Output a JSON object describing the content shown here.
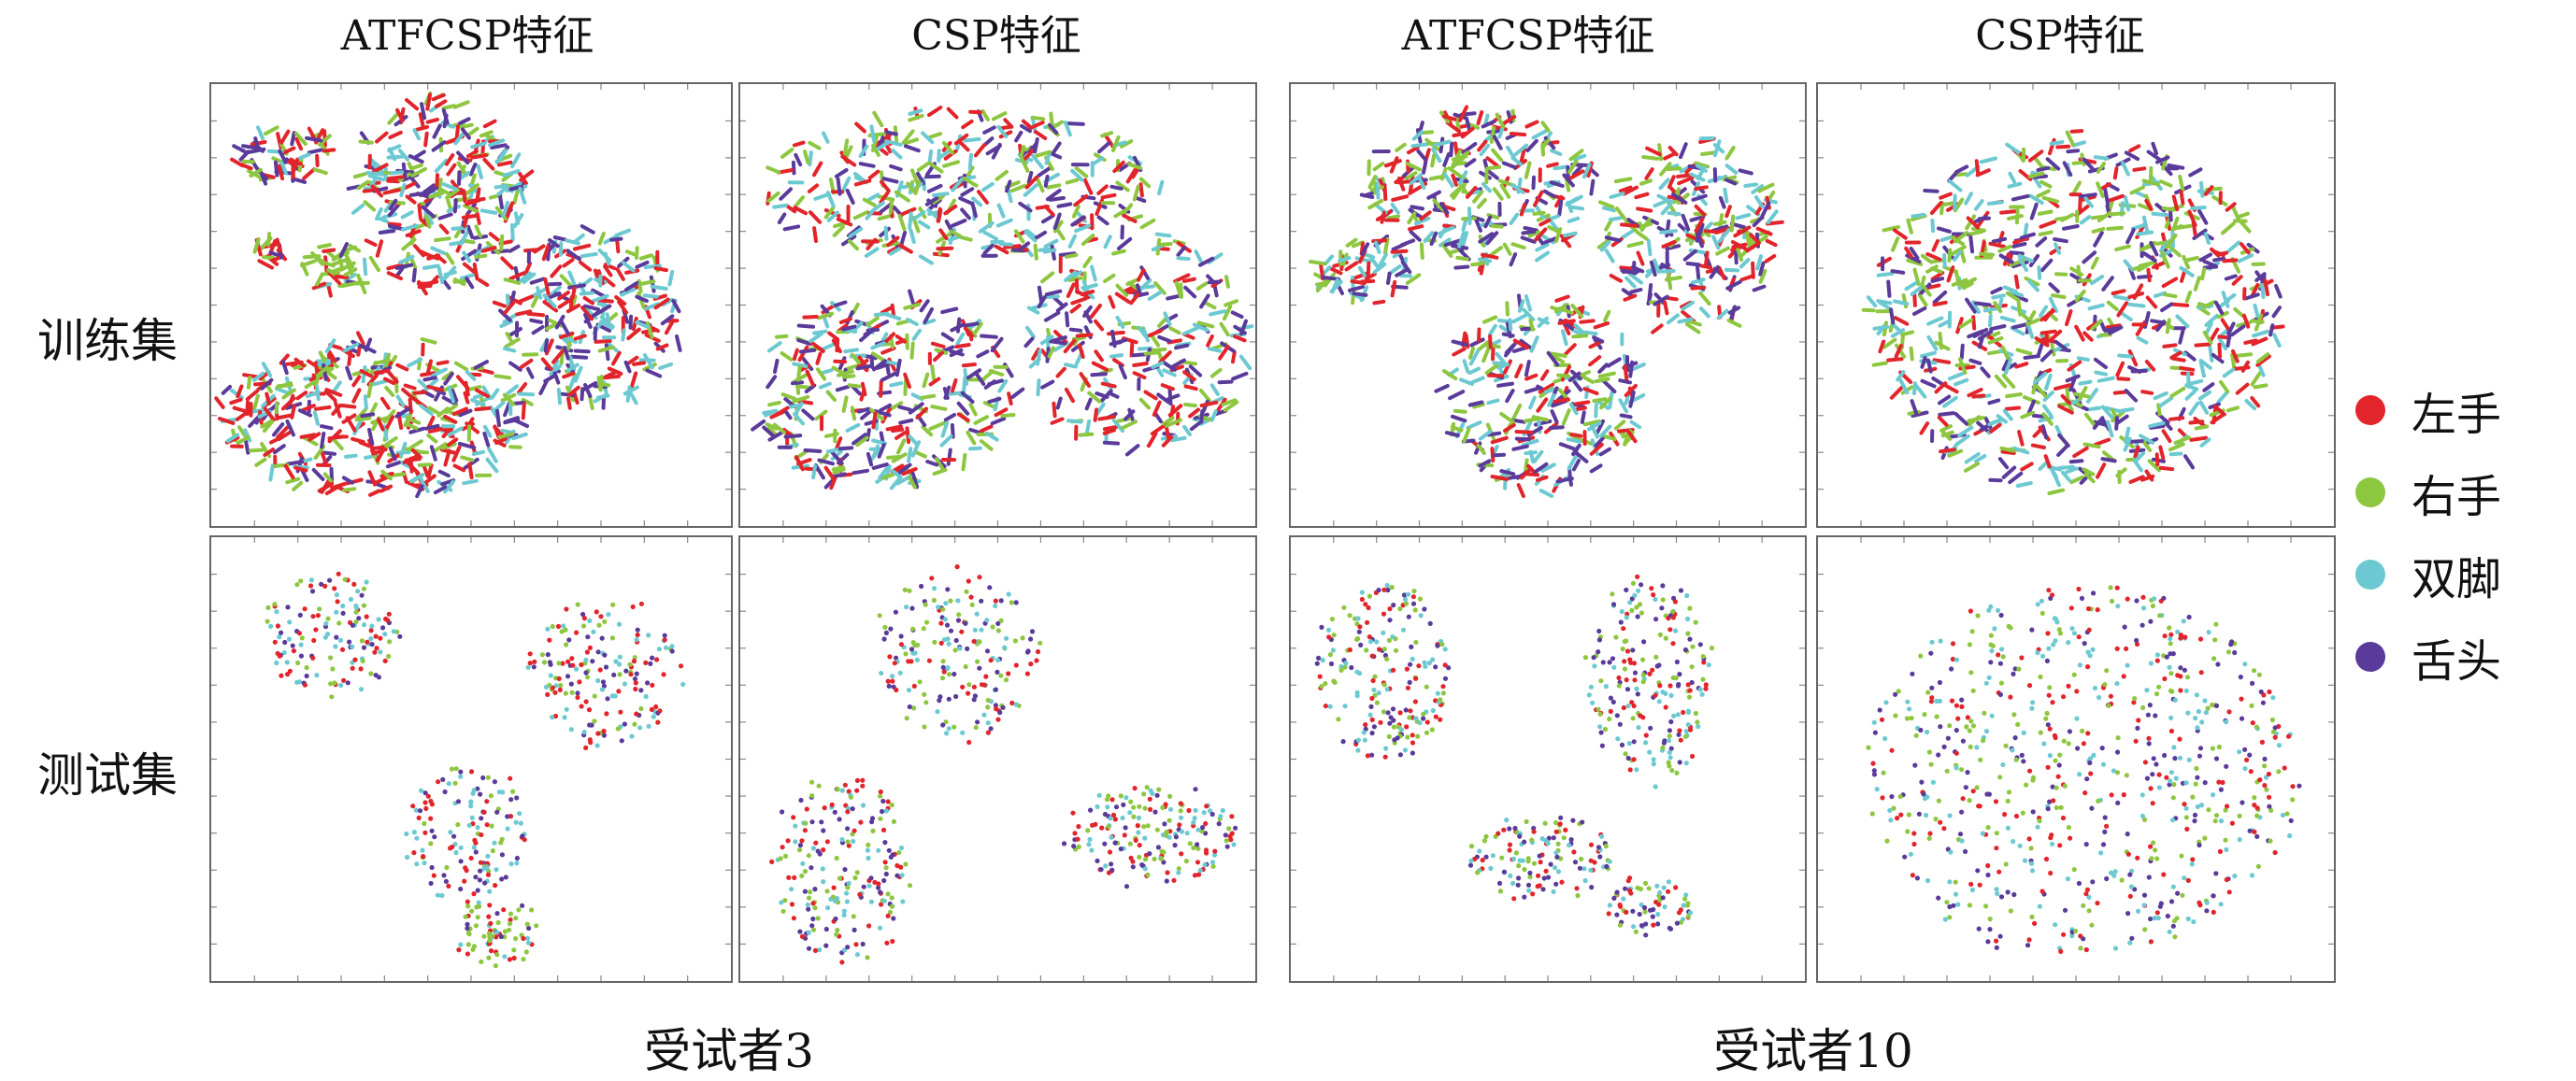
{
  "columns": [
    "ATFCSP特征",
    "CSP特征",
    "ATFCSP特征",
    "CSP特征"
  ],
  "rows": [
    "训练集",
    "测试集"
  ],
  "subjects": [
    "受试者3",
    "受试者10"
  ],
  "legend": [
    {
      "label": "左手",
      "color": "#e2242b"
    },
    {
      "label": "右手",
      "color": "#8dc63f"
    },
    {
      "label": "双脚",
      "color": "#6cc9d1"
    },
    {
      "label": "舌头",
      "color": "#5a3a9a"
    }
  ],
  "chart_data": {
    "type": "scatter",
    "series": [
      {
        "name": "左手",
        "color": "#e2242b"
      },
      {
        "name": "右手",
        "color": "#8dc63f"
      },
      {
        "name": "双脚",
        "color": "#6cc9d1"
      },
      {
        "name": "舌头",
        "color": "#5a3a9a"
      }
    ],
    "xlim": [
      0,
      100
    ],
    "ylim": [
      0,
      100
    ],
    "panels": [
      {
        "subject": "受试者3",
        "row": "训练集",
        "feature": "ATFCSP特征",
        "marker": "dash",
        "clusters": [
          {
            "cx": 14,
            "cy": 84,
            "rx": 9,
            "ry": 7,
            "n": 55,
            "mix": [
              0.45,
              0.25,
              0.1,
              0.2
            ]
          },
          {
            "cx": 44,
            "cy": 75,
            "rx": 17,
            "ry": 22,
            "n": 260,
            "mix": [
              0.3,
              0.25,
              0.25,
              0.2
            ]
          },
          {
            "cx": 24,
            "cy": 58,
            "rx": 7,
            "ry": 5,
            "n": 40,
            "mix": [
              0.2,
              0.6,
              0.1,
              0.1
            ]
          },
          {
            "cx": 12,
            "cy": 62,
            "rx": 3,
            "ry": 3,
            "n": 14,
            "mix": [
              0.5,
              0.2,
              0.1,
              0.2
            ]
          },
          {
            "cx": 73,
            "cy": 47,
            "rx": 17,
            "ry": 20,
            "n": 230,
            "mix": [
              0.3,
              0.15,
              0.3,
              0.25
            ]
          },
          {
            "cx": 32,
            "cy": 25,
            "rx": 30,
            "ry": 18,
            "n": 380,
            "mix": [
              0.38,
              0.22,
              0.22,
              0.18
            ]
          }
        ]
      },
      {
        "subject": "受试者3",
        "row": "训练集",
        "feature": "CSP特征",
        "marker": "dash",
        "clusters": [
          {
            "cx": 43,
            "cy": 77,
            "rx": 38,
            "ry": 17,
            "n": 330,
            "mix": [
              0.25,
              0.25,
              0.25,
              0.25
            ]
          },
          {
            "cx": 77,
            "cy": 42,
            "rx": 21,
            "ry": 26,
            "n": 260,
            "mix": [
              0.25,
              0.25,
              0.25,
              0.25
            ]
          },
          {
            "cx": 28,
            "cy": 30,
            "rx": 25,
            "ry": 22,
            "n": 310,
            "mix": [
              0.25,
              0.25,
              0.25,
              0.25
            ]
          }
        ]
      },
      {
        "subject": "受试者10",
        "row": "训练集",
        "feature": "ATFCSP特征",
        "marker": "dash",
        "clusters": [
          {
            "cx": 37,
            "cy": 76,
            "rx": 22,
            "ry": 18,
            "n": 260,
            "mix": [
              0.25,
              0.25,
              0.25,
              0.25
            ]
          },
          {
            "cx": 14,
            "cy": 58,
            "rx": 10,
            "ry": 7,
            "n": 60,
            "mix": [
              0.25,
              0.25,
              0.25,
              0.25
            ]
          },
          {
            "cx": 78,
            "cy": 66,
            "rx": 17,
            "ry": 22,
            "n": 230,
            "mix": [
              0.25,
              0.25,
              0.25,
              0.25
            ]
          },
          {
            "cx": 49,
            "cy": 30,
            "rx": 19,
            "ry": 22,
            "n": 250,
            "mix": [
              0.25,
              0.25,
              0.25,
              0.25
            ]
          }
        ]
      },
      {
        "subject": "受试者10",
        "row": "训练集",
        "feature": "CSP特征",
        "marker": "dash",
        "clusters": [
          {
            "cx": 50,
            "cy": 48,
            "rx": 40,
            "ry": 40,
            "n": 760,
            "mix": [
              0.25,
              0.25,
              0.25,
              0.25
            ]
          }
        ]
      },
      {
        "subject": "受试者3",
        "row": "测试集",
        "feature": "ATFCSP特征",
        "marker": "dot",
        "clusters": [
          {
            "cx": 23,
            "cy": 78,
            "rx": 13,
            "ry": 14,
            "n": 140,
            "mix": [
              0.3,
              0.2,
              0.25,
              0.25
            ]
          },
          {
            "cx": 76,
            "cy": 70,
            "rx": 15,
            "ry": 17,
            "n": 170,
            "mix": [
              0.3,
              0.2,
              0.25,
              0.25
            ]
          },
          {
            "cx": 49,
            "cy": 33,
            "rx": 12,
            "ry": 15,
            "n": 140,
            "mix": [
              0.25,
              0.15,
              0.3,
              0.3
            ]
          },
          {
            "cx": 55,
            "cy": 11,
            "rx": 8,
            "ry": 7,
            "n": 75,
            "mix": [
              0.25,
              0.6,
              0.1,
              0.05
            ]
          }
        ]
      },
      {
        "subject": "受试者3",
        "row": "测试集",
        "feature": "CSP特征",
        "marker": "dot",
        "clusters": [
          {
            "cx": 42,
            "cy": 73,
            "rx": 16,
            "ry": 19,
            "n": 190,
            "mix": [
              0.25,
              0.25,
              0.25,
              0.25
            ]
          },
          {
            "cx": 20,
            "cy": 25,
            "rx": 13,
            "ry": 22,
            "n": 200,
            "mix": [
              0.25,
              0.25,
              0.25,
              0.25
            ]
          },
          {
            "cx": 80,
            "cy": 33,
            "rx": 17,
            "ry": 11,
            "n": 180,
            "mix": [
              0.25,
              0.25,
              0.25,
              0.25
            ]
          }
        ]
      },
      {
        "subject": "受试者10",
        "row": "测试集",
        "feature": "ATFCSP特征",
        "marker": "dot",
        "clusters": [
          {
            "cx": 18,
            "cy": 70,
            "rx": 13,
            "ry": 20,
            "n": 200,
            "mix": [
              0.25,
              0.25,
              0.25,
              0.25
            ]
          },
          {
            "cx": 70,
            "cy": 68,
            "rx": 12,
            "ry": 24,
            "n": 210,
            "mix": [
              0.25,
              0.25,
              0.25,
              0.25
            ]
          },
          {
            "cx": 49,
            "cy": 28,
            "rx": 14,
            "ry": 9,
            "n": 130,
            "mix": [
              0.25,
              0.25,
              0.25,
              0.25
            ]
          },
          {
            "cx": 70,
            "cy": 17,
            "rx": 9,
            "ry": 6,
            "n": 70,
            "mix": [
              0.25,
              0.25,
              0.25,
              0.25
            ]
          }
        ]
      },
      {
        "subject": "受试者10",
        "row": "测试集",
        "feature": "CSP特征",
        "marker": "dot",
        "clusters": [
          {
            "cx": 51,
            "cy": 47,
            "rx": 42,
            "ry": 42,
            "n": 700,
            "mix": [
              0.25,
              0.25,
              0.25,
              0.25
            ]
          }
        ]
      }
    ]
  }
}
